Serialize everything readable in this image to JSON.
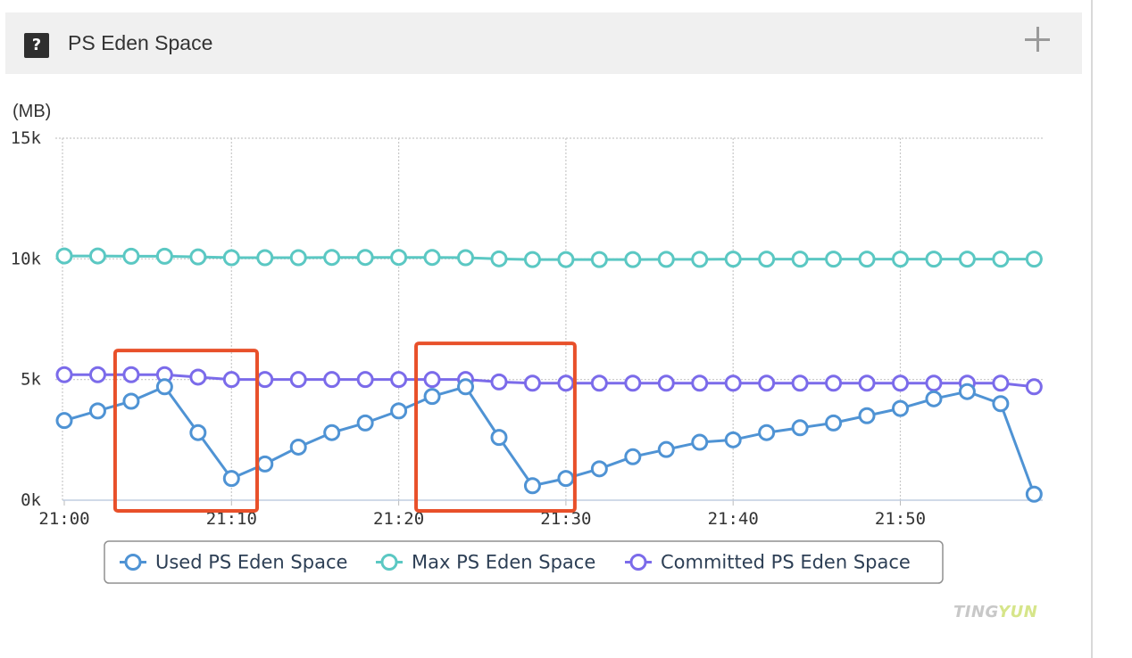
{
  "panel": {
    "title": "PS Eden Space",
    "help_icon": "question-mark-icon",
    "expand_icon": "plus-icon"
  },
  "watermark": {
    "part1": "TING",
    "part2": "YUN"
  },
  "colors": {
    "used": "#4f93d4",
    "max": "#5bc8c3",
    "committed": "#7b6bea",
    "highlight": "#e8502a",
    "grid": "#c8c8c8",
    "axis_text": "#333333",
    "legend_text": "#2d3f55"
  },
  "chart_data": {
    "type": "line",
    "ylabel": "(MB)",
    "yticks": [
      0,
      5000,
      10000,
      15000
    ],
    "ytick_labels": [
      "0k",
      "5k",
      "10k",
      "15k"
    ],
    "ylim": [
      0,
      15000
    ],
    "xlim": [
      "21:00",
      "21:58"
    ],
    "xticks": [
      "21:00",
      "21:10",
      "21:20",
      "21:30",
      "21:40",
      "21:50"
    ],
    "x": [
      "21:00",
      "21:02",
      "21:04",
      "21:06",
      "21:08",
      "21:10",
      "21:12",
      "21:14",
      "21:16",
      "21:18",
      "21:20",
      "21:22",
      "21:24",
      "21:26",
      "21:28",
      "21:30",
      "21:32",
      "21:34",
      "21:36",
      "21:38",
      "21:40",
      "21:42",
      "21:44",
      "21:46",
      "21:48",
      "21:50",
      "21:52",
      "21:54",
      "21:56",
      "21:58"
    ],
    "series": [
      {
        "name": "Used PS Eden Space",
        "values": [
          3300,
          3700,
          4100,
          4700,
          2800,
          900,
          1500,
          2200,
          2800,
          3200,
          3700,
          4300,
          4700,
          2600,
          600,
          900,
          1300,
          1800,
          2100,
          2400,
          2500,
          2800,
          3000,
          3200,
          3500,
          3800,
          4200,
          4500,
          4000,
          250
        ]
      },
      {
        "name": "Max PS Eden Space",
        "values": [
          10120,
          10120,
          10110,
          10110,
          10080,
          10050,
          10050,
          10050,
          10060,
          10060,
          10060,
          10060,
          10050,
          10000,
          9970,
          9970,
          9970,
          9970,
          9980,
          9980,
          9990,
          9990,
          9990,
          9990,
          9990,
          9990,
          9990,
          9990,
          9990,
          9990
        ]
      },
      {
        "name": "Committed PS Eden Space",
        "values": [
          5200,
          5200,
          5200,
          5200,
          5100,
          5000,
          5000,
          5000,
          5000,
          5000,
          5000,
          5000,
          5000,
          4900,
          4850,
          4850,
          4850,
          4850,
          4850,
          4850,
          4850,
          4850,
          4850,
          4850,
          4850,
          4850,
          4850,
          4850,
          4850,
          4700
        ]
      }
    ],
    "grid": true,
    "legend": "bottom-center",
    "highlight_boxes": [
      {
        "x_from": "21:04",
        "x_to": "21:11",
        "y_from": 0,
        "y_to": 6200
      },
      {
        "x_from": "21:22",
        "x_to": "21:30",
        "y_from": 0,
        "y_to": 6500
      }
    ]
  }
}
